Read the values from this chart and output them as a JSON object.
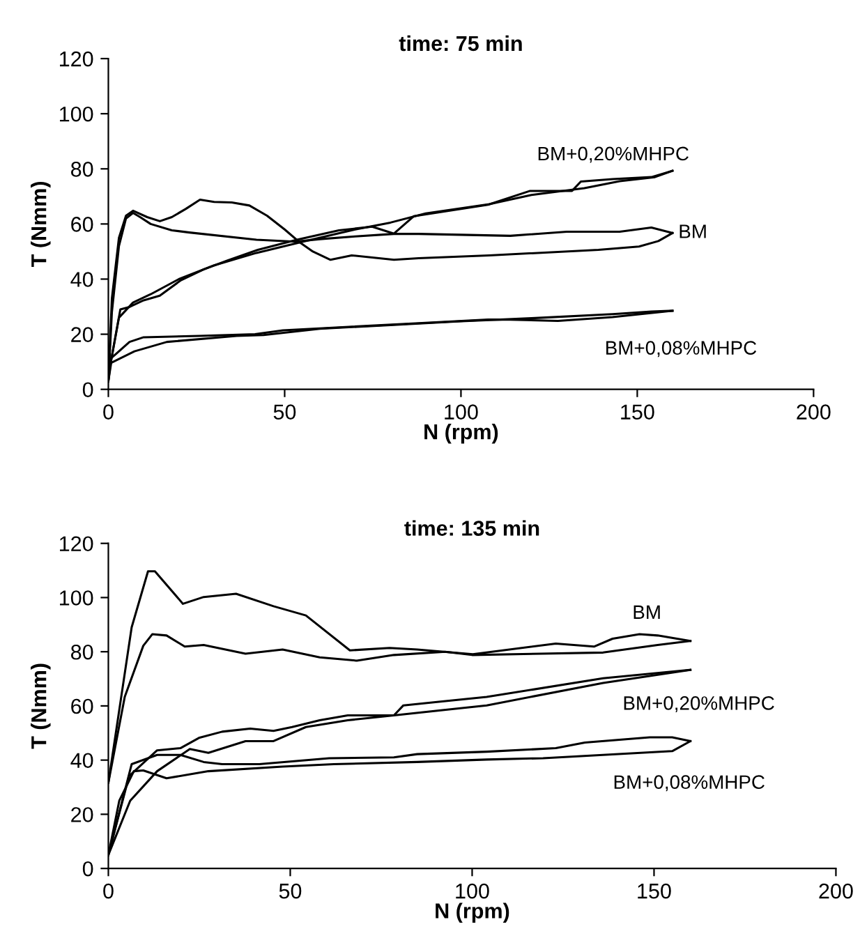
{
  "chart_data": [
    {
      "type": "line",
      "title": "time: 75 min",
      "xlabel": "N (rpm)",
      "ylabel": "T (Nmm)",
      "xlim": [
        0,
        200
      ],
      "xticks": [
        0,
        50,
        100,
        150,
        200
      ],
      "ylim": [
        0,
        120
      ],
      "yticks": [
        0,
        20,
        40,
        60,
        80,
        100,
        120
      ],
      "grid": false,
      "marker": "none",
      "line_style": "solid",
      "series": [
        {
          "name": "BM+0,20%MHPC",
          "color": "#000000",
          "x": [
            0,
            3.4,
            6,
            10,
            14.6,
            20.6,
            27,
            33.7,
            42.4,
            53.5,
            65.4,
            74.8,
            81,
            86.6,
            107.7,
            119.6,
            131.5,
            134,
            143,
            154,
            160
          ],
          "values": [
            5,
            29,
            29.9,
            32.3,
            34,
            39.6,
            43.5,
            46.7,
            50.6,
            54.3,
            57.7,
            59,
            56.5,
            62.8,
            67,
            72,
            72,
            75.4,
            76.3,
            77,
            79.3
          ]
        },
        {
          "color": "#000000",
          "x": [
            0,
            3,
            7,
            12,
            20,
            30,
            42,
            55,
            70,
            80,
            90,
            108,
            120,
            135,
            145,
            155,
            160
          ],
          "values": [
            5,
            26,
            31.5,
            34.5,
            40,
            45,
            49.5,
            53.5,
            58,
            60.5,
            63.8,
            67.2,
            70.5,
            73,
            75.5,
            77,
            79.3
          ]
        },
        {
          "name": "BM",
          "color": "#000000",
          "x": [
            0,
            1,
            3,
            5,
            7,
            11,
            14.6,
            18,
            22,
            26,
            30,
            35,
            40,
            45,
            50,
            54,
            58,
            63,
            69,
            81,
            88,
            108,
            139,
            150.5,
            156,
            160
          ],
          "values": [
            3,
            33,
            55,
            63,
            64.8,
            62.5,
            61,
            62.5,
            65.5,
            68.8,
            68,
            67.8,
            66.7,
            63,
            58,
            53.6,
            50,
            47,
            48.6,
            47,
            47.6,
            48.6,
            50.6,
            51.8,
            53.8,
            56.7
          ]
        },
        {
          "color": "#000000",
          "x": [
            0,
            1,
            3,
            5,
            7,
            9,
            12,
            18,
            23,
            42,
            53,
            60,
            70,
            81,
            88,
            114,
            130,
            145,
            154,
            160
          ],
          "values": [
            3,
            28,
            52,
            62,
            64,
            62.5,
            60,
            57.7,
            56.9,
            54.3,
            53.6,
            54.5,
            55.5,
            56.4,
            56.4,
            55.7,
            57.2,
            57.2,
            58.7,
            56.7
          ]
        },
        {
          "name": "BM+0,08%MHPC",
          "color": "#000000",
          "x": [
            0,
            0.8,
            6,
            10,
            25.8,
            41.6,
            49.5,
            88,
            107.7,
            114,
            127.5,
            143,
            160
          ],
          "values": [
            3,
            11.3,
            17.2,
            18.9,
            19.4,
            20,
            21.4,
            24,
            25.3,
            25.3,
            24.8,
            26.2,
            28.5
          ]
        },
        {
          "color": "#000000",
          "x": [
            0,
            0.8,
            7.4,
            16.6,
            36.4,
            44,
            60,
            80,
            100,
            120,
            143,
            154,
            160
          ],
          "values": [
            3,
            9.6,
            13.8,
            17.2,
            19.4,
            19.7,
            22,
            23.3,
            24.7,
            25.8,
            27.3,
            28.2,
            28.5
          ]
        }
      ]
    },
    {
      "type": "line",
      "title": "time: 135 min",
      "xlabel": "N (rpm)",
      "ylabel": "T (Nmm)",
      "xlim": [
        0,
        200
      ],
      "xticks": [
        0,
        50,
        100,
        150,
        200
      ],
      "ylim": [
        0,
        120
      ],
      "yticks": [
        0,
        20,
        40,
        60,
        80,
        100,
        120
      ],
      "grid": false,
      "marker": "none",
      "line_style": "solid",
      "series": [
        {
          "name": "BM",
          "color": "#000000",
          "x": [
            0,
            6.4,
            10.9,
            12.8,
            20.5,
            26.2,
            35.1,
            45.4,
            54.3,
            66.4,
            77.3,
            84.9,
            100.2,
            123,
            133.5,
            138.6,
            146,
            151,
            160
          ],
          "values": [
            31.6,
            89,
            109.7,
            109.7,
            97.7,
            100.2,
            101.4,
            96.8,
            93.4,
            80.5,
            81.4,
            80.8,
            79.1,
            83,
            81.9,
            84.8,
            86.5,
            86,
            84
          ]
        },
        {
          "color": "#000000",
          "x": [
            0,
            4.5,
            9.6,
            12.1,
            16,
            21,
            26.2,
            37.7,
            47.9,
            58.1,
            68.3,
            78.5,
            92.6,
            100,
            136,
            151,
            160
          ],
          "values": [
            31.6,
            63.3,
            82.2,
            86.5,
            86,
            81.9,
            82.5,
            79.3,
            80.8,
            77.9,
            76.7,
            78.8,
            80,
            78.8,
            79.7,
            82.5,
            84
          ]
        },
        {
          "name": "BM+0,20%MHPC",
          "color": "#000000",
          "x": [
            0,
            5.7,
            13.4,
            19.8,
            24.9,
            31.3,
            39,
            45.4,
            50.5,
            58.1,
            65.8,
            78.5,
            81.1,
            91.3,
            104,
            136,
            160
          ],
          "values": [
            5,
            34.1,
            43.6,
            44.4,
            48.2,
            50.5,
            51.6,
            50.8,
            52.2,
            54.7,
            56.5,
            56.5,
            60.2,
            61.6,
            63.3,
            70.2,
            73.3
          ]
        },
        {
          "color": "#000000",
          "x": [
            0,
            6,
            13.4,
            22.4,
            27.5,
            37.7,
            45.4,
            54.3,
            65.8,
            78.5,
            104,
            136,
            160
          ],
          "values": [
            5,
            25,
            35.9,
            44.1,
            42.7,
            47,
            47,
            52.2,
            54.7,
            56.5,
            60.2,
            68.5,
            73.3
          ]
        },
        {
          "name": "BM+0,08%MHPC",
          "color": "#000000",
          "x": [
            0,
            6.4,
            13.4,
            19.8,
            26.2,
            31.3,
            41.5,
            60.7,
            78.5,
            84.9,
            104,
            123,
            131,
            148.8,
            155,
            160
          ],
          "values": [
            5,
            38.5,
            41.9,
            41.9,
            39.3,
            38.5,
            38.5,
            40.7,
            41,
            42.2,
            43.1,
            44.4,
            46.5,
            48.4,
            48.4,
            47
          ]
        },
        {
          "color": "#000000",
          "x": [
            0,
            3,
            7,
            9.6,
            16,
            27.5,
            47.9,
            62,
            84.9,
            104,
            119.5,
            155,
            160
          ],
          "values": [
            5,
            25,
            35.9,
            36.2,
            33.3,
            35.9,
            37.6,
            38.5,
            39.3,
            40.2,
            40.7,
            43.3,
            47
          ]
        }
      ]
    }
  ]
}
